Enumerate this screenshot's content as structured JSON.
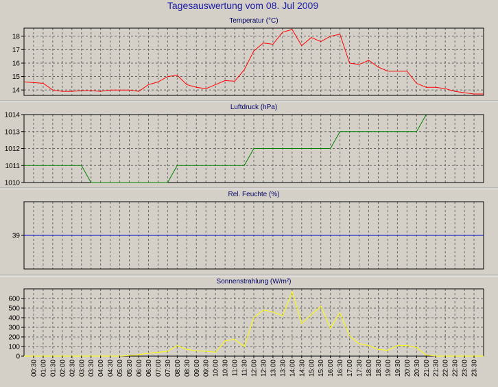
{
  "page_title": "Tagesauswertung vom 08. Jul 2009",
  "x_labels": [
    "00:30",
    "01:00",
    "01:30",
    "02:00",
    "02:30",
    "03:00",
    "03:30",
    "04:00",
    "04:30",
    "05:00",
    "05:30",
    "06:00",
    "06:30",
    "07:00",
    "07:30",
    "08:00",
    "08:30",
    "09:00",
    "09:30",
    "10:00",
    "10:30",
    "11:00",
    "11:30",
    "12:00",
    "12:30",
    "13:00",
    "13:30",
    "14:00",
    "14:30",
    "15:00",
    "15:30",
    "16:00",
    "16:30",
    "17:00",
    "17:30",
    "18:00",
    "18:30",
    "19:00",
    "19:30",
    "20:00",
    "20:30",
    "21:00",
    "21:30",
    "22:00",
    "22:30",
    "23:00",
    "23:30"
  ],
  "chart_data": [
    {
      "type": "line",
      "title": "Temperatur (°C)",
      "color": "#ff0000",
      "ylim": [
        13.6,
        18.6
      ],
      "yticks": [
        14,
        15,
        16,
        17,
        18
      ],
      "x": [
        "00:00",
        "00:30",
        "01:00",
        "01:30",
        "02:00",
        "02:30",
        "03:00",
        "03:30",
        "04:00",
        "04:30",
        "05:00",
        "05:30",
        "06:00",
        "06:30",
        "07:00",
        "07:30",
        "08:00",
        "08:30",
        "09:00",
        "09:30",
        "10:00",
        "10:30",
        "11:00",
        "11:30",
        "12:00",
        "12:30",
        "13:00",
        "13:30",
        "14:00",
        "14:30",
        "15:00",
        "15:30",
        "16:00",
        "16:30",
        "17:00",
        "17:30",
        "18:00",
        "18:30",
        "19:00",
        "19:30",
        "20:00",
        "20:30",
        "21:00",
        "21:30",
        "22:00",
        "22:30",
        "23:00",
        "23:30",
        "24:00"
      ],
      "values": [
        14.6,
        14.55,
        14.5,
        14.0,
        13.9,
        13.9,
        13.95,
        13.95,
        13.9,
        14.0,
        14.0,
        14.0,
        13.9,
        14.4,
        14.6,
        15.0,
        15.1,
        14.4,
        14.2,
        14.1,
        14.4,
        14.7,
        14.65,
        15.5,
        16.9,
        17.5,
        17.4,
        18.3,
        18.5,
        17.3,
        17.9,
        17.6,
        18.0,
        18.15,
        16.0,
        15.9,
        16.2,
        15.7,
        15.4,
        15.4,
        15.4,
        14.5,
        14.2,
        14.2,
        14.1,
        13.9,
        13.8,
        13.7,
        13.7
      ]
    },
    {
      "type": "line",
      "title": "Luftdruck (hPa)",
      "color": "#008000",
      "ylim": [
        1010,
        1014
      ],
      "yticks": [
        1010,
        1011,
        1012,
        1013,
        1014
      ],
      "x": [
        "00:00",
        "03:00",
        "03:30",
        "07:30",
        "08:00",
        "11:30",
        "12:00",
        "16:00",
        "16:30",
        "20:30",
        "21:00"
      ],
      "values": [
        1011,
        1011,
        1010,
        1010,
        1011,
        1011,
        1012,
        1012,
        1013,
        1013,
        1014
      ]
    },
    {
      "type": "line",
      "title": "Rel. Feuchte (%)",
      "color": "#0000cc",
      "ylim": [
        38,
        40
      ],
      "yticks": [
        39
      ],
      "x": [
        "00:00",
        "24:00"
      ],
      "values": [
        39,
        39
      ]
    },
    {
      "type": "line",
      "title": "Sonnenstrahlung (W/m²)",
      "color": "#ffff00",
      "ylim": [
        0,
        700
      ],
      "yticks": [
        0,
        100,
        200,
        300,
        400,
        500,
        600
      ],
      "x": [
        "00:00",
        "05:00",
        "05:30",
        "06:00",
        "06:30",
        "07:00",
        "07:30",
        "08:00",
        "08:30",
        "09:00",
        "09:30",
        "10:00",
        "10:30",
        "11:00",
        "11:30",
        "12:00",
        "12:30",
        "13:00",
        "13:30",
        "14:00",
        "14:30",
        "15:00",
        "15:30",
        "16:00",
        "16:30",
        "17:00",
        "17:30",
        "18:00",
        "18:30",
        "19:00",
        "19:30",
        "20:00",
        "20:30",
        "21:00",
        "21:30",
        "24:00"
      ],
      "values": [
        0,
        0,
        5,
        15,
        30,
        40,
        50,
        110,
        70,
        55,
        50,
        40,
        160,
        175,
        100,
        400,
        480,
        460,
        420,
        670,
        340,
        430,
        520,
        290,
        450,
        210,
        130,
        110,
        70,
        60,
        110,
        110,
        90,
        10,
        0,
        0
      ]
    }
  ]
}
